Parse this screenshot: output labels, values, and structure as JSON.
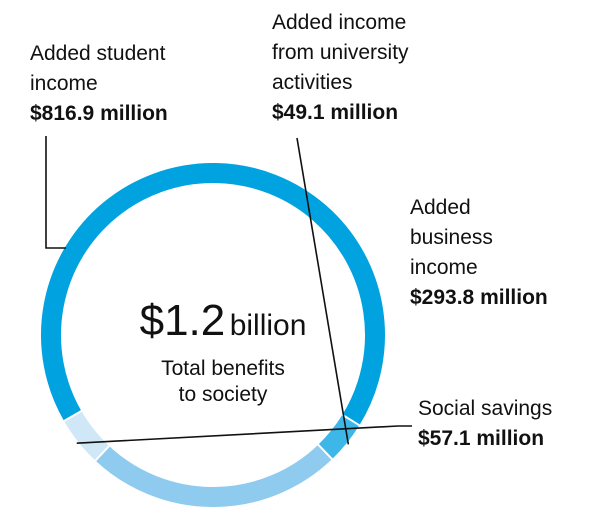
{
  "chart_data": {
    "type": "pie",
    "categories": [
      "Added student income",
      "Added income from university activities",
      "Added business income",
      "Social savings"
    ],
    "values": [
      816.9,
      49.1,
      293.8,
      57.1
    ],
    "value_labels": [
      "$816.9 million",
      "$49.1 million",
      "$293.8 million",
      "$57.1 million"
    ],
    "label_lines": [
      [
        "Added student",
        "income"
      ],
      [
        "Added income",
        "from university",
        "activities"
      ],
      [
        "Added",
        "business",
        "income"
      ],
      [
        "Social savings"
      ]
    ],
    "colors": [
      "#00a3e0",
      "#3db6e8",
      "#8ecbef",
      "#cfe7f7"
    ],
    "center": {
      "amount": "$1.2",
      "unit": "billion",
      "caption_lines": [
        "Total benefits",
        "to society"
      ]
    }
  }
}
